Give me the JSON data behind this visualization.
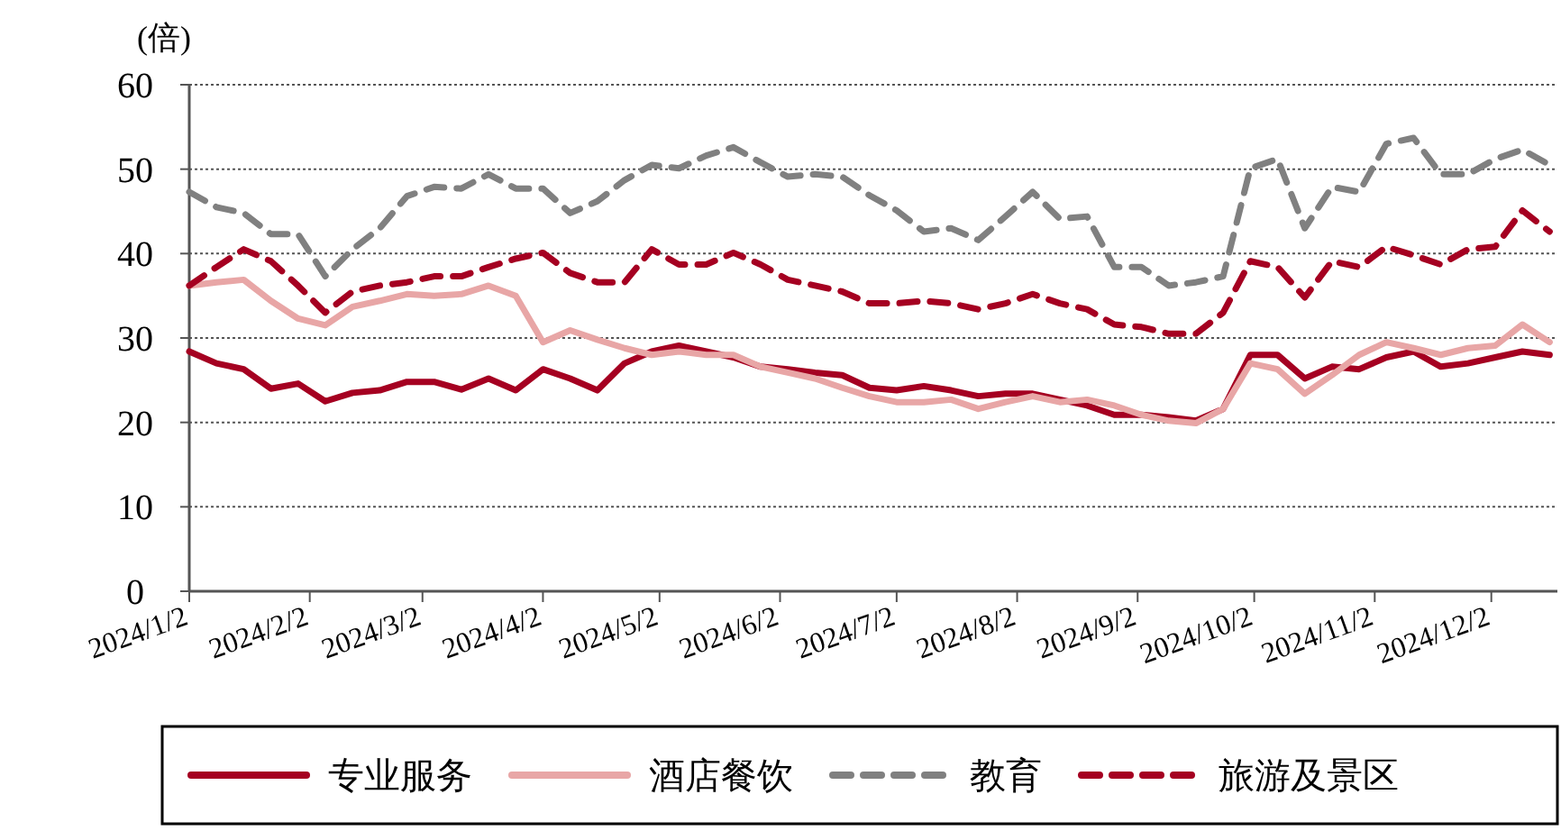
{
  "chart_data": {
    "type": "line",
    "ylabel": "(倍)",
    "x": [
      "2024-01-02",
      "2024-01-09",
      "2024-01-16",
      "2024-01-23",
      "2024-01-30",
      "2024-02-06",
      "2024-02-13",
      "2024-02-20",
      "2024-02-27",
      "2024-03-05",
      "2024-03-12",
      "2024-03-19",
      "2024-03-26",
      "2024-04-02",
      "2024-04-09",
      "2024-04-16",
      "2024-04-23",
      "2024-04-30",
      "2024-05-07",
      "2024-05-14",
      "2024-05-21",
      "2024-05-28",
      "2024-06-04",
      "2024-06-11",
      "2024-06-18",
      "2024-06-25",
      "2024-07-02",
      "2024-07-09",
      "2024-07-16",
      "2024-07-23",
      "2024-07-30",
      "2024-08-06",
      "2024-08-13",
      "2024-08-20",
      "2024-08-27",
      "2024-09-03",
      "2024-09-10",
      "2024-09-17",
      "2024-09-24",
      "2024-10-01",
      "2024-10-08",
      "2024-10-15",
      "2024-10-22",
      "2024-10-29",
      "2024-11-05",
      "2024-11-12",
      "2024-11-19",
      "2024-11-26",
      "2024-12-03",
      "2024-12-10",
      "2024-12-17"
    ],
    "xlim": [
      "2024-01-02",
      "2024-12-19"
    ],
    "xticks": [
      {
        "value": "2024-01-02",
        "label": "2024/1/2"
      },
      {
        "value": "2024-02-02",
        "label": "2024/2/2"
      },
      {
        "value": "2024-03-02",
        "label": "2024/3/2"
      },
      {
        "value": "2024-04-02",
        "label": "2024/4/2"
      },
      {
        "value": "2024-05-02",
        "label": "2024/5/2"
      },
      {
        "value": "2024-06-02",
        "label": "2024/6/2"
      },
      {
        "value": "2024-07-02",
        "label": "2024/7/2"
      },
      {
        "value": "2024-08-02",
        "label": "2024/8/2"
      },
      {
        "value": "2024-09-02",
        "label": "2024/9/2"
      },
      {
        "value": "2024-10-02",
        "label": "2024/10/2"
      },
      {
        "value": "2024-11-02",
        "label": "2024/11/2"
      },
      {
        "value": "2024-12-02",
        "label": "2024/12/2"
      }
    ],
    "ylim": [
      0,
      60
    ],
    "yticks": [
      0,
      10,
      20,
      30,
      40,
      50,
      60
    ],
    "grid": "y",
    "legend": "bottom",
    "series": [
      {
        "name": "专业服务",
        "color": "#a50021",
        "line_style": "solid",
        "values": [
          28.4,
          27.0,
          26.3,
          24.0,
          24.6,
          22.5,
          23.5,
          23.8,
          24.8,
          24.8,
          23.9,
          25.2,
          23.8,
          26.3,
          25.2,
          23.8,
          27.0,
          28.4,
          29.1,
          28.4,
          27.7,
          26.6,
          26.3,
          25.9,
          25.6,
          24.1,
          23.8,
          24.3,
          23.8,
          23.1,
          23.4,
          23.4,
          22.7,
          22.0,
          20.9,
          20.9,
          20.6,
          20.2,
          21.6,
          28.0,
          28.0,
          25.2,
          26.6,
          26.3,
          27.7,
          28.4,
          26.6,
          27.0,
          27.7,
          28.4,
          28.0
        ]
      },
      {
        "name": "酒店餐饮",
        "color": "#e8a6a6",
        "line_style": "solid",
        "values": [
          36.2,
          36.6,
          36.9,
          34.4,
          32.3,
          31.5,
          33.7,
          34.4,
          35.2,
          35.0,
          35.2,
          36.2,
          35.0,
          29.5,
          30.9,
          29.8,
          28.8,
          28.0,
          28.4,
          28.0,
          28.0,
          26.6,
          25.9,
          25.2,
          24.1,
          23.1,
          22.4,
          22.4,
          22.7,
          21.6,
          22.4,
          23.1,
          22.4,
          22.7,
          22.0,
          20.9,
          20.2,
          19.9,
          21.6,
          27.0,
          26.3,
          23.4,
          25.6,
          28.0,
          29.5,
          28.8,
          28.0,
          28.8,
          29.1,
          31.6,
          29.5
        ]
      },
      {
        "name": "教育",
        "color": "#808080",
        "line_style": "dashed",
        "values": [
          47.3,
          45.5,
          44.8,
          42.3,
          42.3,
          37.3,
          40.5,
          43.0,
          46.8,
          47.9,
          47.7,
          49.4,
          47.7,
          47.7,
          44.8,
          46.2,
          48.7,
          50.5,
          50.1,
          51.6,
          52.6,
          50.8,
          49.1,
          49.4,
          49.1,
          46.9,
          45.1,
          42.6,
          43.0,
          41.6,
          44.4,
          47.3,
          44.1,
          44.4,
          38.4,
          38.4,
          36.2,
          36.6,
          37.3,
          50.1,
          51.2,
          43.0,
          47.9,
          47.3,
          53.0,
          53.7,
          49.4,
          49.4,
          51.2,
          52.3,
          50.5
        ]
      },
      {
        "name": "旅游及景区",
        "color": "#a50021",
        "line_style": "dashed",
        "values": [
          36.2,
          38.4,
          40.5,
          39.1,
          36.2,
          33.0,
          35.5,
          36.2,
          36.6,
          37.3,
          37.3,
          38.4,
          39.4,
          40.1,
          37.7,
          36.6,
          36.6,
          40.5,
          38.7,
          38.7,
          40.1,
          38.7,
          36.9,
          36.2,
          35.5,
          34.1,
          34.1,
          34.4,
          34.1,
          33.4,
          34.1,
          35.2,
          34.1,
          33.4,
          31.6,
          31.3,
          30.5,
          30.5,
          33.0,
          39.1,
          38.4,
          34.8,
          39.1,
          38.4,
          40.8,
          39.8,
          38.7,
          40.5,
          40.8,
          45.1,
          42.6
        ]
      }
    ]
  }
}
